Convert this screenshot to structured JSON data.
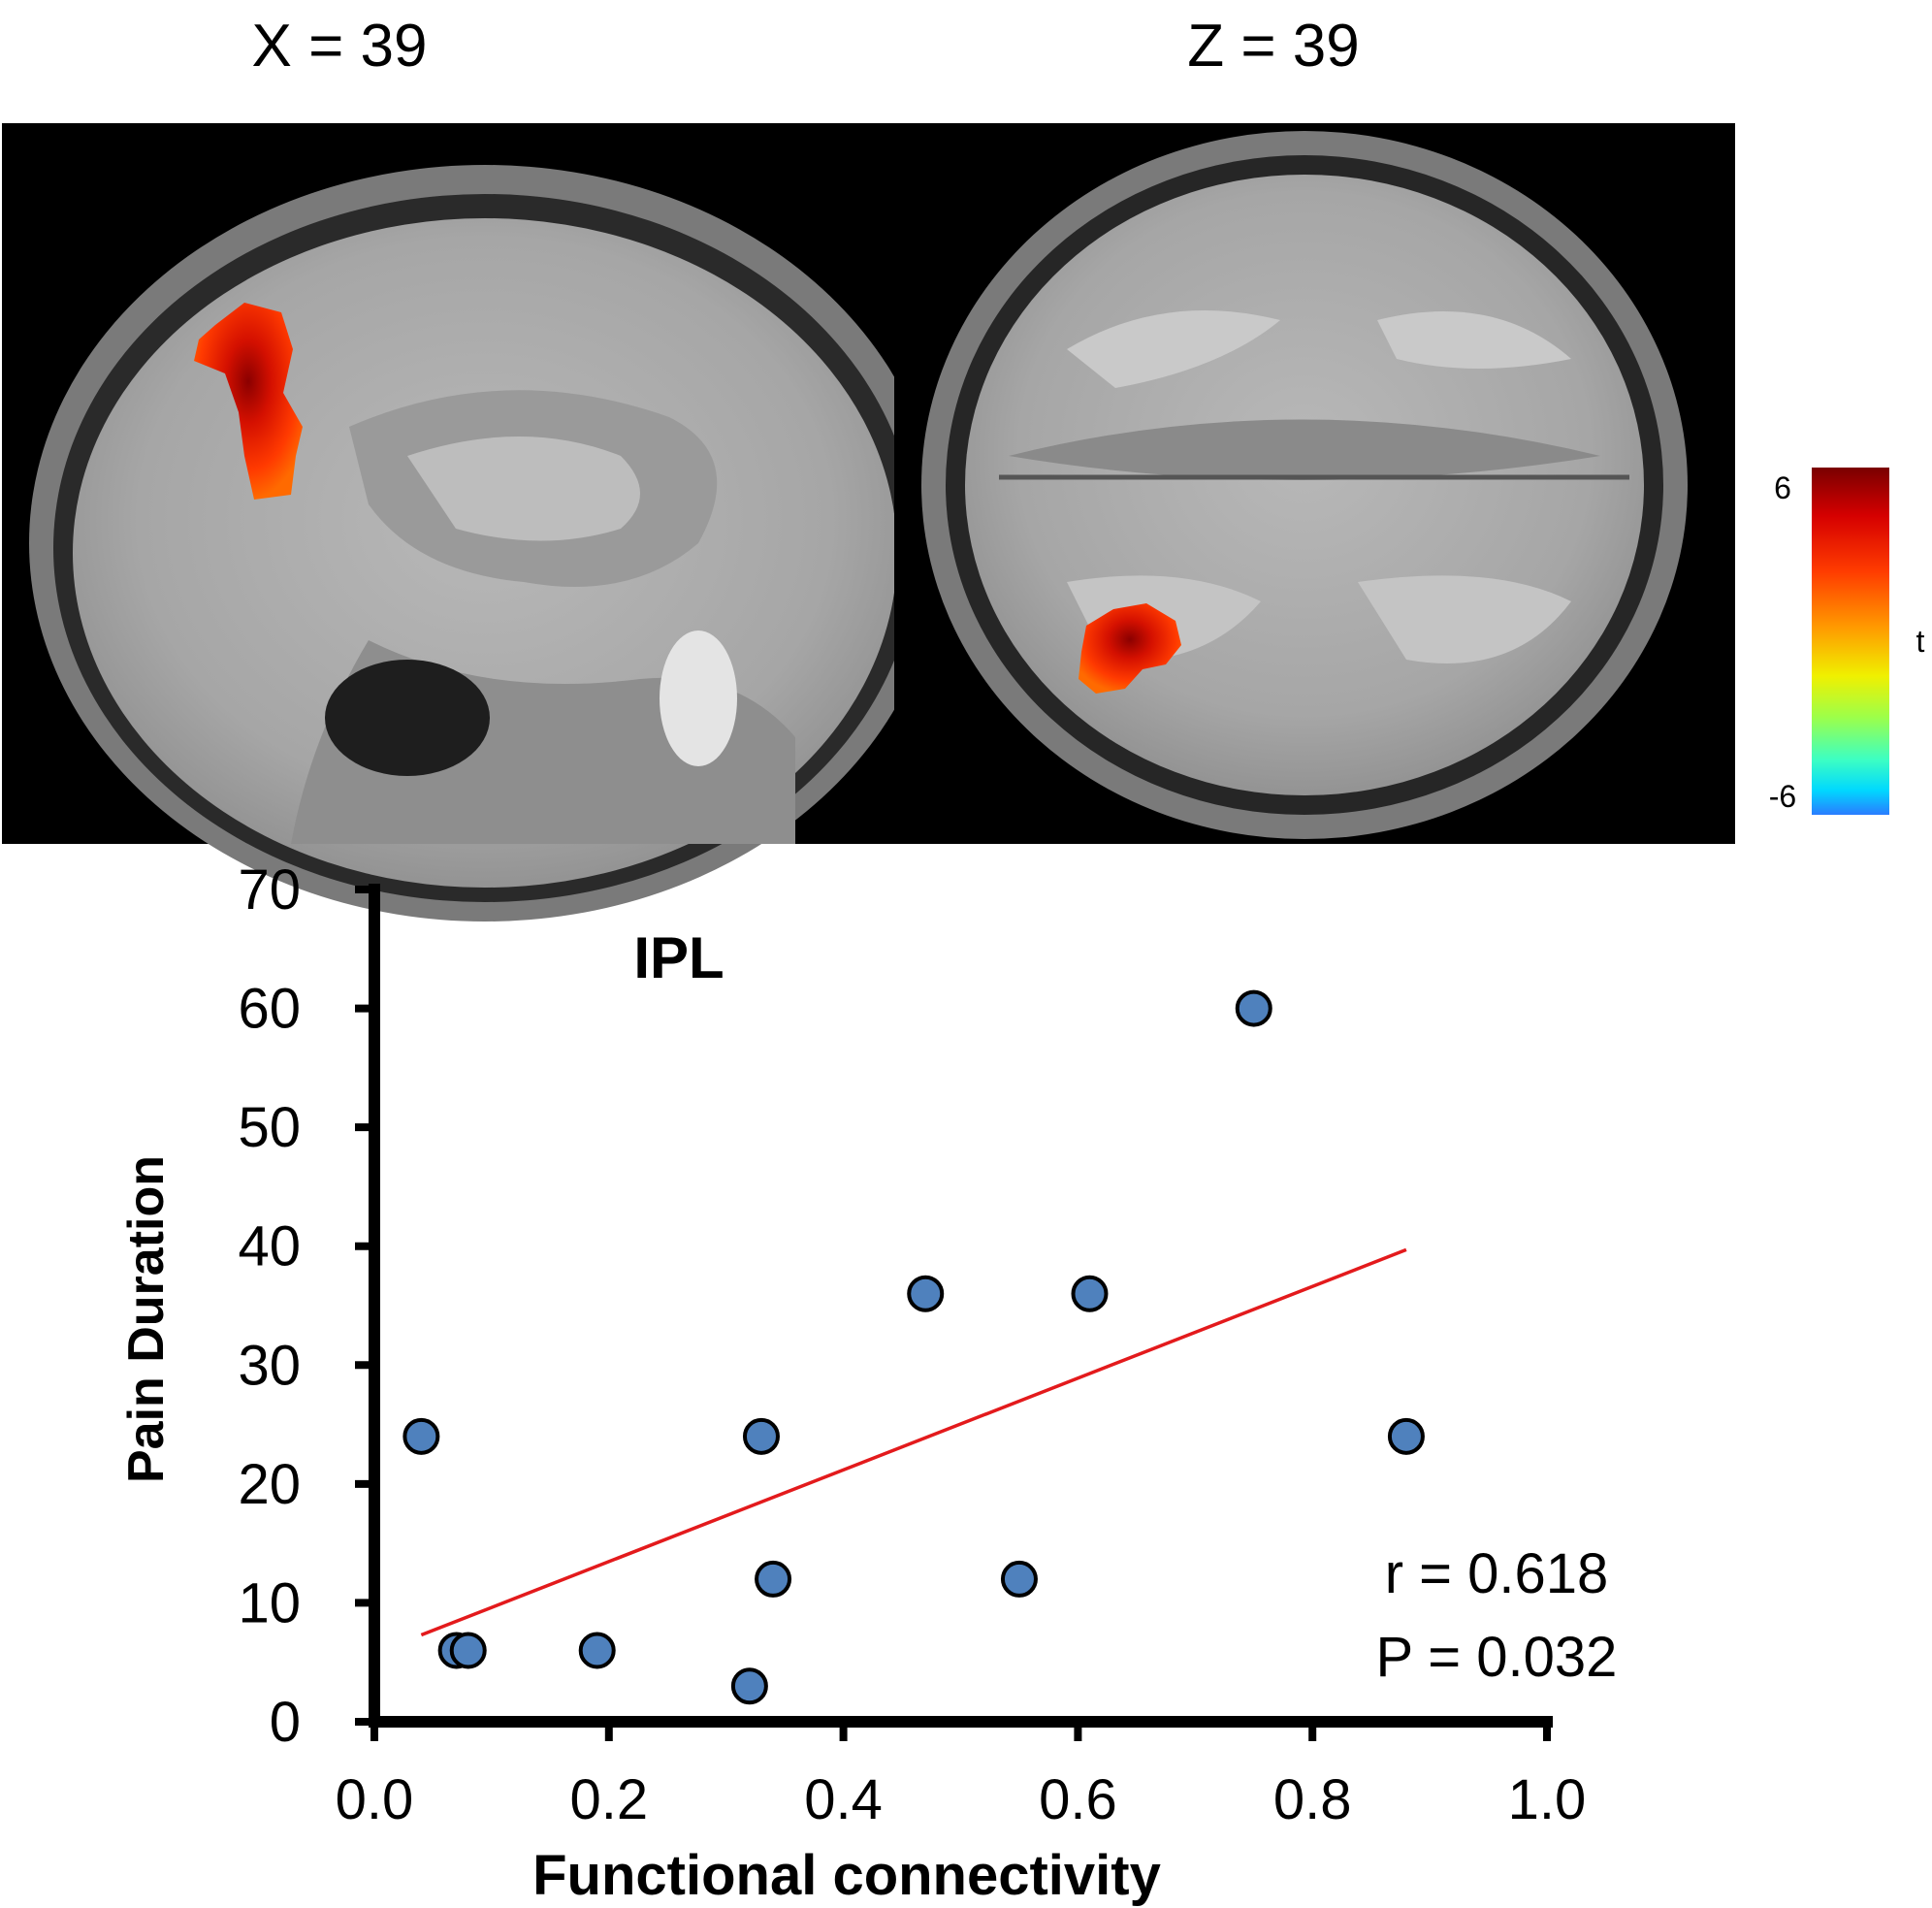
{
  "panels": {
    "sagittal": {
      "label": "X = 39"
    },
    "axial": {
      "label": "Z = 39"
    }
  },
  "colorbar": {
    "max_label": "6",
    "min_label": "-6",
    "title": "t",
    "colors": [
      "#8b0000",
      "#e00000",
      "#ff3300",
      "#ff8800",
      "#ffee00",
      "#aaff33",
      "#33ffaa",
      "#00eeff",
      "#1e90ff"
    ]
  },
  "chart_data": {
    "type": "scatter",
    "title": "IPL",
    "xlabel": "Functional connectivity",
    "ylabel": "Pain Duration",
    "xlim": [
      0.0,
      1.0
    ],
    "ylim": [
      0,
      70
    ],
    "x_ticks": [
      "0.0",
      "0.2",
      "0.4",
      "0.6",
      "0.8",
      "1.0"
    ],
    "y_ticks": [
      "0",
      "10",
      "20",
      "30",
      "40",
      "50",
      "60",
      "70"
    ],
    "points": [
      {
        "x": 0.04,
        "y": 24
      },
      {
        "x": 0.07,
        "y": 6
      },
      {
        "x": 0.08,
        "y": 6
      },
      {
        "x": 0.19,
        "y": 6
      },
      {
        "x": 0.32,
        "y": 3
      },
      {
        "x": 0.33,
        "y": 24
      },
      {
        "x": 0.34,
        "y": 12
      },
      {
        "x": 0.47,
        "y": 36
      },
      {
        "x": 0.55,
        "y": 12
      },
      {
        "x": 0.61,
        "y": 36
      },
      {
        "x": 0.75,
        "y": 60
      },
      {
        "x": 0.88,
        "y": 24
      }
    ],
    "fit_line": {
      "x": [
        0.04,
        0.88
      ],
      "y": [
        7.3,
        39.7
      ],
      "color": "#e31a1c"
    },
    "point_color": "#4f81bd",
    "grid": false,
    "annotations": {
      "r": "r = 0.618",
      "p": "P = 0.032"
    }
  }
}
